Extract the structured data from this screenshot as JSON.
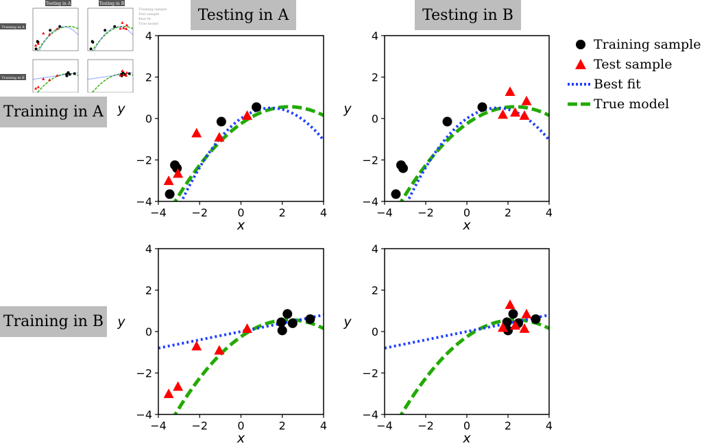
{
  "headers": {
    "col_a": "Testing in A",
    "col_b": "Testing in B",
    "row_a": "Training in A",
    "row_b": "Training in B"
  },
  "legend": [
    {
      "label": "Training sample",
      "marker": "circle",
      "color": "#000000"
    },
    {
      "label": "Test sample",
      "marker": "triangle",
      "color": "#ff0000"
    },
    {
      "label": "Best fit",
      "marker": "dotted-line",
      "color": "#1f3fff"
    },
    {
      "label": "True model",
      "marker": "dashed-line",
      "color": "#22aa00"
    }
  ],
  "thumbnail": {
    "col_a": "Testing in A",
    "col_b": "Testing in B",
    "row_a": "Training in A",
    "row_b": "Training in B",
    "legend": [
      "Training sample",
      "Test sample",
      "Best fit",
      "True model"
    ]
  },
  "chart_data": {
    "type": "scatter",
    "xlabel": "x",
    "ylabel": "y",
    "xlim": [
      -4,
      4
    ],
    "ylim": [
      -4,
      4
    ],
    "xticks": [
      -4,
      -2,
      0,
      2,
      4
    ],
    "yticks": [
      -4,
      -2,
      0,
      2,
      4
    ],
    "xtick_labels": [
      "−4",
      "−2",
      "0",
      "2",
      "4"
    ],
    "ytick_labels": [
      "−4",
      "−2",
      "0",
      "2",
      "4"
    ],
    "true_model": {
      "type": "quadratic",
      "a": -0.15,
      "b": 0.7,
      "c": -0.25
    },
    "training_A": [
      [
        -3.45,
        -3.65
      ],
      [
        -3.2,
        -2.25
      ],
      [
        -3.1,
        -2.4
      ],
      [
        -0.95,
        -0.15
      ],
      [
        0.75,
        0.55
      ]
    ],
    "training_B": [
      [
        1.95,
        0.45
      ],
      [
        2.0,
        0.05
      ],
      [
        2.25,
        0.85
      ],
      [
        2.5,
        0.4
      ],
      [
        3.35,
        0.6
      ]
    ],
    "test_A": [
      [
        -3.5,
        -3.0
      ],
      [
        -3.05,
        -2.65
      ],
      [
        -2.15,
        -0.7
      ],
      [
        -1.05,
        -0.9
      ],
      [
        0.3,
        0.15
      ]
    ],
    "test_B": [
      [
        1.75,
        0.2
      ],
      [
        2.1,
        1.3
      ],
      [
        2.35,
        0.3
      ],
      [
        2.8,
        0.15
      ],
      [
        2.9,
        0.85
      ]
    ],
    "best_fit_A": {
      "type": "quadratic",
      "a": -0.24,
      "b": 0.7,
      "c": 0.0
    },
    "best_fit_B": {
      "type": "linear",
      "slope": 0.2,
      "intercept": 0.0
    },
    "panels": [
      {
        "train": "A",
        "test": "A"
      },
      {
        "train": "A",
        "test": "B"
      },
      {
        "train": "B",
        "test": "A"
      },
      {
        "train": "B",
        "test": "B"
      }
    ]
  },
  "colors": {
    "training": "#000000",
    "test": "#ff0000",
    "best_fit": "#1f3fff",
    "true_model": "#22aa00",
    "header_bg": "#bdbdbd"
  }
}
